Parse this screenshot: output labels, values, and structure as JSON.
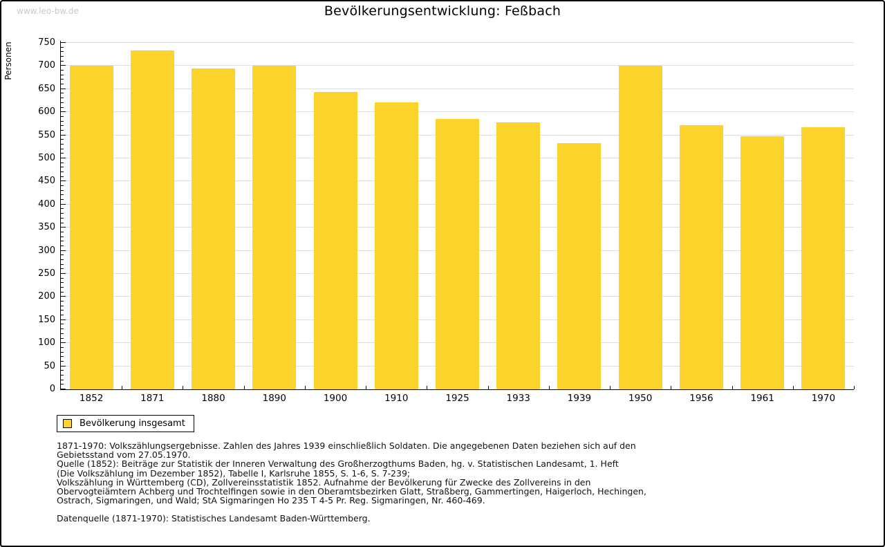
{
  "page": {
    "watermark": "www.leo-bw.de",
    "title": "Bevölkerungsentwicklung: Feßbach"
  },
  "chart_data": {
    "type": "bar",
    "title": "Bevölkerungsentwicklung: Feßbach",
    "xlabel": "",
    "ylabel": "Personen",
    "categories": [
      "1852",
      "1871",
      "1880",
      "1890",
      "1900",
      "1910",
      "1925",
      "1933",
      "1939",
      "1950",
      "1956",
      "1961",
      "1970"
    ],
    "series": [
      {
        "name": "Bevölkerung insgesamt",
        "values": [
          700,
          734,
          695,
          700,
          644,
          622,
          585,
          578,
          533,
          700,
          572,
          548,
          567
        ]
      }
    ],
    "ylim": [
      0,
      750
    ],
    "ytick_step": 50,
    "ytick_minor_step": 10,
    "grid": true,
    "legend_position": "bottom-left",
    "bar_color": "#fcd32b",
    "grid_color": "#dddddd",
    "axis_color": "#000000"
  },
  "legend": {
    "label": "Bevölkerung insgesamt",
    "swatch_color": "#fcd32b"
  },
  "footnote": {
    "lines": [
      "1871-1970: Volkszählungsergebnisse. Zahlen des Jahres 1939 einschließlich Soldaten. Die angegebenen Daten beziehen sich auf den",
      "Gebietsstand vom 27.05.1970.",
      "Quelle (1852): Beiträge zur Statistik der Inneren Verwaltung des Großherzogthums Baden, hg. v. Statistischen Landesamt, 1. Heft",
      "(Die Volkszählung im Dezember 1852), Tabelle I, Karlsruhe 1855, S. 1-6, S. 7-239;",
      "Volkszählung in Württemberg (CD), Zollvereinsstatistik 1852. Aufnahme der Bevölkerung für Zwecke des Zollvereins in den",
      "Obervogteiämtern Achberg und Trochtelfingen sowie in den Oberamtsbezirken Glatt, Straßberg, Gammertingen, Haigerloch, Hechingen,",
      "Ostrach, Sigmaringen, und Wald; StA Sigmaringen Ho 235 T 4-5 Pr. Reg. Sigmaringen, Nr. 460-469."
    ],
    "datasource": "Datenquelle (1871-1970): Statistisches Landesamt Baden-Württemberg."
  }
}
